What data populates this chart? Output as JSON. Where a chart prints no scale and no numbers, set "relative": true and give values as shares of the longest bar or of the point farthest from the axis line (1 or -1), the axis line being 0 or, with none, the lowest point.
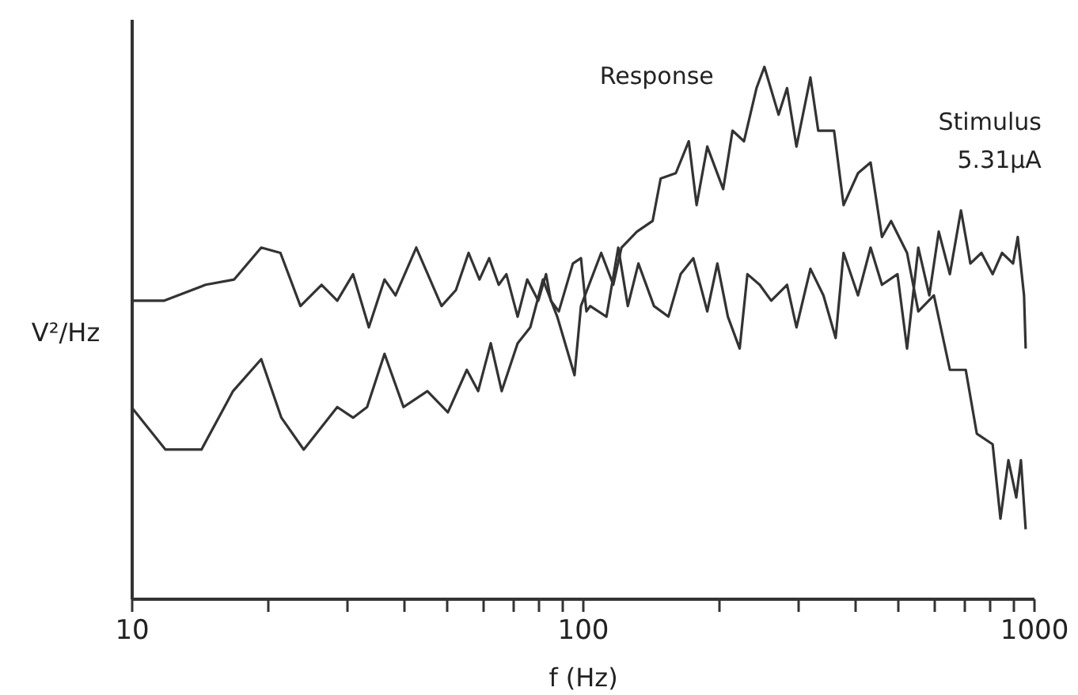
{
  "chart_data": {
    "type": "line",
    "relative": true,
    "xlabel": "f (Hz)",
    "ylabel": "V²/Hz",
    "log": "x",
    "xlim": [
      10,
      1000
    ],
    "xticks": [
      10,
      {
        "value": 20,
        "label": null
      },
      {
        "value": 30,
        "label": null
      },
      {
        "value": 40,
        "label": null
      },
      {
        "value": 50,
        "label": null
      },
      {
        "value": 60,
        "label": null
      },
      {
        "value": 70,
        "label": null
      },
      {
        "value": 80,
        "label": null
      },
      {
        "value": 90,
        "label": null
      },
      100,
      {
        "value": 200,
        "label": null
      },
      {
        "value": 300,
        "label": null
      },
      {
        "value": 400,
        "label": null
      },
      {
        "value": 500,
        "label": null
      },
      {
        "value": 600,
        "label": null
      },
      {
        "value": 700,
        "label": null
      },
      {
        "value": 800,
        "label": null
      },
      {
        "value": 900,
        "label": null
      },
      1000
    ],
    "grid": false,
    "marker": "none",
    "line_style": "solid",
    "series": [
      {
        "name": "Response",
        "color": "#333333",
        "x": [
          10,
          11.9,
          14.3,
          16.8,
          19.4,
          21.5,
          24.1,
          28.6,
          31.0,
          33.3,
          36.4,
          40.1,
          45.3,
          50.3,
          55.4,
          58.7,
          62.6,
          66.2,
          71.8,
          76.6,
          81.7,
          87.9,
          96.0,
          99.2,
          110,
          117,
          122,
          132,
          143,
          149,
          161,
          172,
          179,
          189,
          205,
          215,
          228,
          243,
          253,
          272,
          284,
          298,
          320,
          333,
          361,
          379,
          408,
          435,
          461,
          483,
          524,
          555,
          601,
          652,
          707,
          748,
          811,
          844,
          879,
          915,
          937,
          960
        ],
        "values": [
          0.36,
          0.28,
          0.28,
          0.39,
          0.45,
          0.34,
          0.28,
          0.36,
          0.34,
          0.36,
          0.46,
          0.36,
          0.39,
          0.35,
          0.43,
          0.39,
          0.48,
          0.39,
          0.48,
          0.51,
          0.6,
          0.53,
          0.42,
          0.55,
          0.65,
          0.59,
          0.66,
          0.69,
          0.71,
          0.79,
          0.8,
          0.86,
          0.74,
          0.85,
          0.77,
          0.88,
          0.86,
          0.96,
          1.0,
          0.91,
          0.96,
          0.85,
          0.98,
          0.88,
          0.88,
          0.74,
          0.8,
          0.82,
          0.68,
          0.71,
          0.65,
          0.54,
          0.57,
          0.43,
          0.43,
          0.31,
          0.29,
          0.15,
          0.26,
          0.19,
          0.26,
          0.13
        ]
      },
      {
        "name": "Stimulus 5.31μA",
        "color": "#333333",
        "x": [
          10,
          11.8,
          14.6,
          16.9,
          19.4,
          21.4,
          23.7,
          26.4,
          28.6,
          31.0,
          33.6,
          36.4,
          38.5,
          42.8,
          48.7,
          52.4,
          55.9,
          59.1,
          62.1,
          65.2,
          67.8,
          71.8,
          75.4,
          79.8,
          83.0,
          85.1,
          88.6,
          95.2,
          99.2,
          102,
          104,
          113,
          120,
          126,
          133,
          144,
          155,
          165,
          176,
          189,
          199,
          210,
          223,
          232,
          247,
          262,
          284,
          298,
          320,
          342,
          364,
          379,
          408,
          435,
          461,
          499,
          524,
          555,
          587,
          616,
          652,
          690,
          724,
          766,
          811,
          851,
          900,
          922,
          952,
          960
        ],
        "values": [
          0.56,
          0.56,
          0.59,
          0.6,
          0.66,
          0.65,
          0.55,
          0.59,
          0.56,
          0.61,
          0.51,
          0.6,
          0.57,
          0.66,
          0.55,
          0.58,
          0.65,
          0.6,
          0.64,
          0.59,
          0.61,
          0.53,
          0.6,
          0.56,
          0.61,
          0.56,
          0.54,
          0.63,
          0.64,
          0.54,
          0.55,
          0.53,
          0.66,
          0.55,
          0.63,
          0.55,
          0.53,
          0.61,
          0.64,
          0.54,
          0.63,
          0.53,
          0.47,
          0.61,
          0.59,
          0.56,
          0.59,
          0.51,
          0.62,
          0.57,
          0.49,
          0.65,
          0.57,
          0.66,
          0.59,
          0.61,
          0.47,
          0.66,
          0.57,
          0.69,
          0.61,
          0.73,
          0.63,
          0.65,
          0.61,
          0.65,
          0.63,
          0.68,
          0.57,
          0.47
        ]
      }
    ]
  }
}
